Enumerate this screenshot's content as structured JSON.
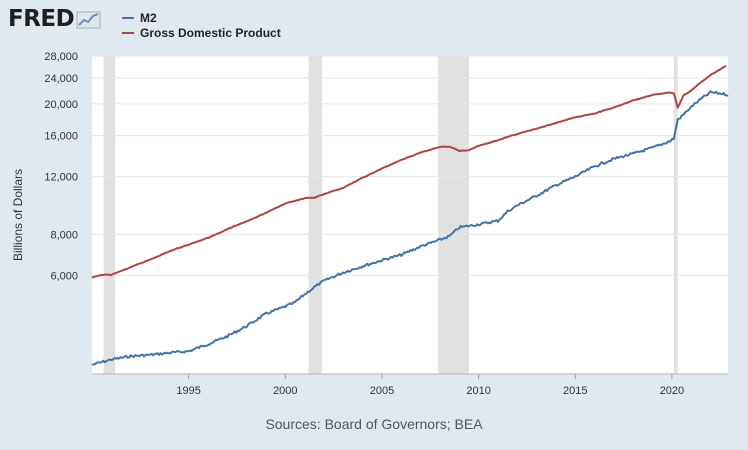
{
  "header": {
    "logo_text": "FRED",
    "logo_icon": "line-chart-icon"
  },
  "colors": {
    "background": "#e1e9f0",
    "plot_background": "#ffffff",
    "recession": "#e1e1e1",
    "grid": "#e6e6e6"
  },
  "chart_data": {
    "type": "line",
    "yscale": "log",
    "ylabel": "Billions of Dollars",
    "xlim": [
      1990.0,
      2022.9
    ],
    "ylim": [
      3000,
      28000
    ],
    "y_ticks": [
      6000,
      8000,
      12000,
      16000,
      20000,
      24000,
      28000
    ],
    "y_tick_labels": [
      "6,000",
      "8,000",
      "12,000",
      "16,000",
      "20,000",
      "24,000",
      "28,000"
    ],
    "x_ticks": [
      1995,
      2000,
      2005,
      2010,
      2015,
      2020
    ],
    "x_tick_labels": [
      "1995",
      "2000",
      "2005",
      "2010",
      "2015",
      "2020"
    ],
    "grid": "horizontal",
    "legend_position": "top-left",
    "recessions": [
      [
        1990.6,
        1991.2
      ],
      [
        2001.2,
        2001.9
      ],
      [
        2007.9,
        2009.5
      ],
      [
        2020.1,
        2020.3
      ]
    ],
    "series": [
      {
        "name": "M2",
        "color": "#4572a7",
        "points": [
          [
            1990.0,
            3200
          ],
          [
            1990.5,
            3260
          ],
          [
            1991.0,
            3320
          ],
          [
            1992.0,
            3400
          ],
          [
            1993.0,
            3430
          ],
          [
            1994.0,
            3480
          ],
          [
            1995.0,
            3520
          ],
          [
            1996.0,
            3700
          ],
          [
            1997.0,
            3910
          ],
          [
            1998.0,
            4200
          ],
          [
            1999.0,
            4580
          ],
          [
            2000.0,
            4820
          ],
          [
            2000.5,
            4960
          ],
          [
            2001.0,
            5250
          ],
          [
            2001.5,
            5520
          ],
          [
            2002.0,
            5770
          ],
          [
            2003.0,
            6120
          ],
          [
            2004.0,
            6400
          ],
          [
            2005.0,
            6670
          ],
          [
            2006.0,
            6930
          ],
          [
            2007.0,
            7350
          ],
          [
            2008.0,
            7700
          ],
          [
            2008.5,
            7900
          ],
          [
            2009.0,
            8400
          ],
          [
            2010.0,
            8580
          ],
          [
            2011.0,
            8800
          ],
          [
            2011.5,
            9400
          ],
          [
            2012.0,
            9800
          ],
          [
            2013.0,
            10500
          ],
          [
            2014.0,
            11300
          ],
          [
            2015.0,
            12000
          ],
          [
            2016.0,
            12900
          ],
          [
            2017.0,
            13600
          ],
          [
            2018.0,
            14100
          ],
          [
            2019.0,
            14700
          ],
          [
            2019.9,
            15400
          ],
          [
            2020.1,
            15700
          ],
          [
            2020.3,
            17900
          ],
          [
            2020.5,
            18300
          ],
          [
            2021.0,
            19600
          ],
          [
            2021.5,
            20700
          ],
          [
            2022.0,
            21700
          ],
          [
            2022.3,
            21600
          ],
          [
            2022.6,
            21500
          ],
          [
            2022.9,
            21300
          ]
        ]
      },
      {
        "name": "Gross Domestic Product",
        "color": "#aa4643",
        "points": [
          [
            1990.0,
            5900
          ],
          [
            1990.5,
            6020
          ],
          [
            1991.0,
            6020
          ],
          [
            1992.0,
            6350
          ],
          [
            1993.0,
            6700
          ],
          [
            1994.0,
            7100
          ],
          [
            1995.0,
            7450
          ],
          [
            1996.0,
            7800
          ],
          [
            1997.0,
            8300
          ],
          [
            1998.0,
            8770
          ],
          [
            1999.0,
            9300
          ],
          [
            2000.0,
            9950
          ],
          [
            2001.0,
            10300
          ],
          [
            2001.5,
            10350
          ],
          [
            2002.0,
            10600
          ],
          [
            2003.0,
            11100
          ],
          [
            2004.0,
            11900
          ],
          [
            2005.0,
            12700
          ],
          [
            2006.0,
            13500
          ],
          [
            2007.0,
            14200
          ],
          [
            2008.0,
            14800
          ],
          [
            2008.5,
            14800
          ],
          [
            2009.0,
            14400
          ],
          [
            2009.5,
            14450
          ],
          [
            2010.0,
            14900
          ],
          [
            2011.0,
            15500
          ],
          [
            2012.0,
            16200
          ],
          [
            2013.0,
            16800
          ],
          [
            2014.0,
            17500
          ],
          [
            2015.0,
            18200
          ],
          [
            2016.0,
            18700
          ],
          [
            2017.0,
            19500
          ],
          [
            2018.0,
            20500
          ],
          [
            2019.0,
            21300
          ],
          [
            2019.9,
            21700
          ],
          [
            2020.1,
            21500
          ],
          [
            2020.3,
            19500
          ],
          [
            2020.6,
            21200
          ],
          [
            2021.0,
            22000
          ],
          [
            2021.5,
            23300
          ],
          [
            2022.0,
            24500
          ],
          [
            2022.5,
            25500
          ],
          [
            2022.8,
            26100
          ]
        ]
      }
    ]
  },
  "footer": {
    "source": "Sources: Board of Governors; BEA"
  }
}
